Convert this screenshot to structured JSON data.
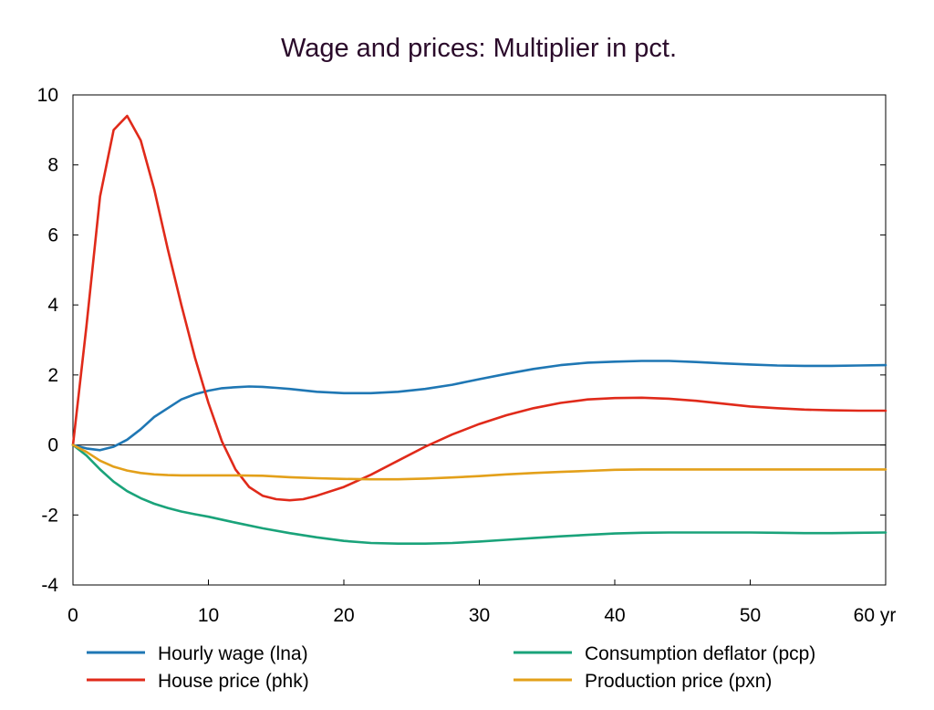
{
  "chart_data": {
    "type": "line",
    "title": "Wage and prices: Multiplier in pct.",
    "xlabel": "",
    "ylabel": "",
    "xlim": [
      0,
      60
    ],
    "ylim": [
      -4,
      10
    ],
    "x_ticks": [
      0,
      10,
      20,
      30,
      40,
      50,
      60
    ],
    "x_tick_labels": [
      "0",
      "10",
      "20",
      "30",
      "40",
      "50",
      "60 yr"
    ],
    "y_ticks": [
      -4,
      -2,
      0,
      2,
      4,
      6,
      8,
      10
    ],
    "y_tick_labels": [
      "-4",
      "-2",
      "0",
      "2",
      "4",
      "6",
      "8",
      "10"
    ],
    "grid": false,
    "legend_position": "bottom",
    "series": [
      {
        "name": "Hourly wage (lna)",
        "color": "#1f77b4",
        "x": [
          0,
          1,
          2,
          3,
          4,
          5,
          6,
          7,
          8,
          9,
          10,
          11,
          12,
          13,
          14,
          15,
          16,
          18,
          20,
          22,
          24,
          26,
          28,
          30,
          32,
          34,
          36,
          38,
          40,
          42,
          44,
          46,
          48,
          50,
          52,
          54,
          56,
          58,
          60
        ],
        "y": [
          0,
          -0.1,
          -0.15,
          -0.05,
          0.15,
          0.45,
          0.8,
          1.05,
          1.3,
          1.45,
          1.55,
          1.62,
          1.65,
          1.67,
          1.66,
          1.63,
          1.6,
          1.52,
          1.48,
          1.48,
          1.52,
          1.6,
          1.72,
          1.88,
          2.03,
          2.17,
          2.28,
          2.35,
          2.38,
          2.4,
          2.4,
          2.37,
          2.33,
          2.3,
          2.27,
          2.26,
          2.26,
          2.27,
          2.28
        ]
      },
      {
        "name": "House price (phk)",
        "color": "#e02a1a",
        "x": [
          0,
          1,
          2,
          3,
          4,
          5,
          6,
          7,
          8,
          9,
          10,
          11,
          12,
          13,
          14,
          15,
          16,
          17,
          18,
          20,
          22,
          24,
          26,
          28,
          30,
          32,
          34,
          36,
          38,
          40,
          42,
          44,
          46,
          48,
          50,
          52,
          54,
          56,
          58,
          60
        ],
        "y": [
          0,
          3.4,
          7.1,
          9.0,
          9.4,
          8.7,
          7.3,
          5.6,
          4.0,
          2.5,
          1.2,
          0.1,
          -0.7,
          -1.2,
          -1.45,
          -1.55,
          -1.58,
          -1.55,
          -1.45,
          -1.2,
          -0.85,
          -0.45,
          -0.05,
          0.3,
          0.6,
          0.85,
          1.05,
          1.2,
          1.3,
          1.34,
          1.35,
          1.32,
          1.26,
          1.18,
          1.1,
          1.05,
          1.01,
          0.99,
          0.98,
          0.98
        ]
      },
      {
        "name": "Consumption deflator (pcp)",
        "color": "#1aa37a",
        "x": [
          0,
          1,
          2,
          3,
          4,
          5,
          6,
          7,
          8,
          9,
          10,
          12,
          14,
          16,
          18,
          20,
          22,
          24,
          26,
          28,
          30,
          32,
          34,
          36,
          38,
          40,
          42,
          44,
          46,
          48,
          50,
          52,
          54,
          56,
          58,
          60
        ],
        "y": [
          0,
          -0.3,
          -0.7,
          -1.05,
          -1.32,
          -1.52,
          -1.68,
          -1.8,
          -1.9,
          -1.98,
          -2.05,
          -2.22,
          -2.38,
          -2.52,
          -2.64,
          -2.74,
          -2.8,
          -2.82,
          -2.82,
          -2.8,
          -2.76,
          -2.71,
          -2.66,
          -2.61,
          -2.57,
          -2.53,
          -2.51,
          -2.5,
          -2.5,
          -2.5,
          -2.5,
          -2.51,
          -2.52,
          -2.52,
          -2.51,
          -2.5
        ]
      },
      {
        "name": "Production price (pxn)",
        "color": "#e3a01a",
        "x": [
          0,
          1,
          2,
          3,
          4,
          5,
          6,
          7,
          8,
          10,
          12,
          14,
          16,
          18,
          20,
          22,
          24,
          26,
          28,
          30,
          32,
          34,
          36,
          38,
          40,
          42,
          44,
          46,
          48,
          50,
          52,
          54,
          56,
          58,
          60
        ],
        "y": [
          0,
          -0.2,
          -0.45,
          -0.62,
          -0.73,
          -0.8,
          -0.84,
          -0.86,
          -0.87,
          -0.87,
          -0.87,
          -0.88,
          -0.92,
          -0.95,
          -0.97,
          -0.98,
          -0.98,
          -0.96,
          -0.93,
          -0.89,
          -0.84,
          -0.8,
          -0.77,
          -0.74,
          -0.71,
          -0.7,
          -0.7,
          -0.7,
          -0.7,
          -0.7,
          -0.7,
          -0.7,
          -0.7,
          -0.7,
          -0.7
        ]
      }
    ]
  }
}
